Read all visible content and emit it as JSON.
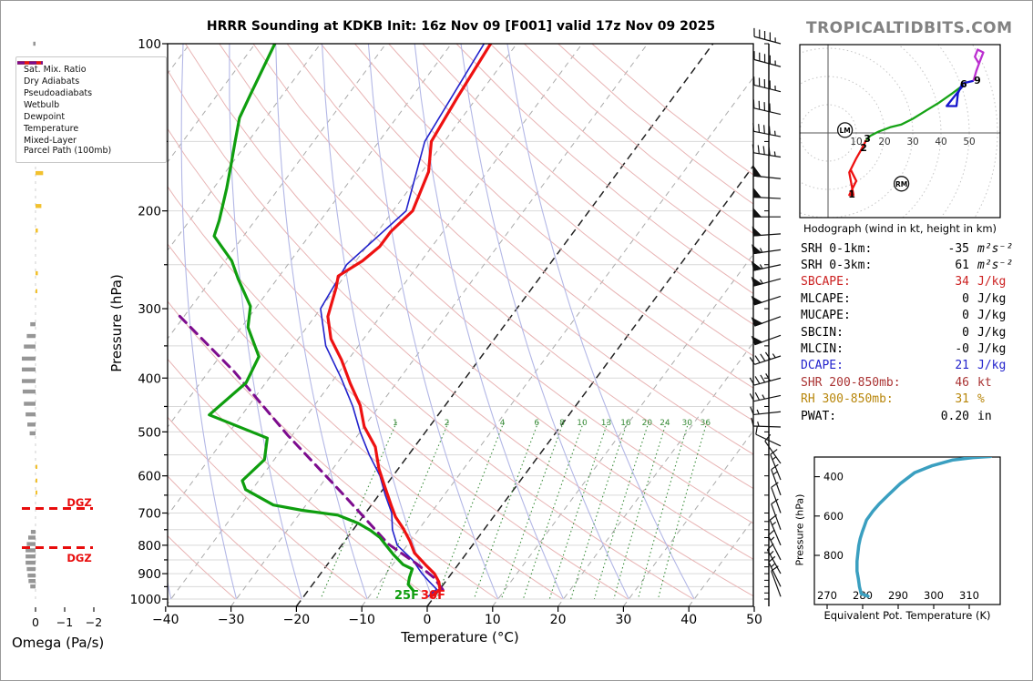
{
  "header": {
    "title": "HRRR Sounding at KDKB Init: 16z Nov 09 [F001] valid 17z Nov 09 2025",
    "brand": "TROPICALTIDBITS.COM"
  },
  "legend": {
    "items": [
      {
        "label": "Sat. Mix. Ratio",
        "key": "mixratio"
      },
      {
        "label": "Dry Adiabats",
        "key": "dry"
      },
      {
        "label": "Pseudoadiabats",
        "key": "pseudo"
      },
      {
        "label": "Wetbulb",
        "key": "wetbulb"
      },
      {
        "label": "Dewpoint",
        "key": "dewpoint"
      },
      {
        "label": "Temperature",
        "key": "temperature"
      },
      {
        "label": "Mixed-Layer\nParcel Path (100mb)",
        "key": "parcel"
      }
    ]
  },
  "colors": {
    "temperature": "#ee1111",
    "dewpoint": "#0f9e0f",
    "wetbulb": "#2222cc",
    "parcel": "#7d0c8e",
    "dry": "#e8b4b4",
    "pseudo": "#b3b7e6",
    "mixratio": "#3b8d3b",
    "isotherm": "#aaaaaa",
    "isotherm_hl": "#222222",
    "grid": "#d9d9d9",
    "omega_down": "#969696",
    "omega_up": "#f2c12e",
    "dgz": "#e80c0c",
    "thetae": "#3a9fc0",
    "hodo_0_3": "#ee1111",
    "hodo_3_6": "#16a316",
    "hodo_6_9": "#1515cc",
    "hodo_9_plus": "#bb2fd0",
    "barb": "#111111"
  },
  "skewt": {
    "xlabel": "Temperature (°C)",
    "ylabel": "Pressure (hPa)",
    "p_ticks": [
      100,
      200,
      300,
      400,
      500,
      600,
      700,
      800,
      900,
      1000
    ],
    "t_ticks": [
      -40,
      -30,
      -20,
      -10,
      0,
      10,
      20,
      30,
      40,
      50
    ],
    "surface_labels": {
      "dewpoint_f": "25F",
      "temperature_f": "30F"
    },
    "dgz_label": "DGZ",
    "dgz_levels_hPa": [
      687,
      808
    ],
    "mixing_ratio_labels": [
      1,
      2,
      4,
      6,
      8,
      10,
      13,
      16,
      20,
      24,
      30,
      36
    ]
  },
  "omega_panel": {
    "label": "Omega (Pa/s)",
    "ticks": [
      0,
      -1,
      -2
    ]
  },
  "hodograph": {
    "caption": "Hodograph (wind in kt, height in km)",
    "ring_labels": [
      10,
      20,
      30,
      40,
      50
    ],
    "markers": [
      {
        "label": "LM",
        "u": 6,
        "v": 1
      },
      {
        "label": "RM",
        "u": 26,
        "v": -18
      }
    ],
    "height_labels": [
      {
        "label": "1",
        "u": 8.4,
        "v": -21.6
      },
      {
        "label": "2",
        "u": 12.6,
        "v": -5.2
      },
      {
        "label": "3",
        "u": 13.9,
        "v": -1.9
      },
      {
        "label": "6",
        "u": 48,
        "v": 17.4
      },
      {
        "label": "9",
        "u": 52.9,
        "v": 18.7
      }
    ]
  },
  "thetae_panel": {
    "xlabel": "Equivalent Pot. Temperature (K)",
    "ylabel": "Pressure (hPa)",
    "x_ticks": [
      270,
      280,
      290,
      300,
      310
    ],
    "p_ticks": [
      400,
      600,
      800
    ]
  },
  "stats": {
    "rows": [
      {
        "label": "SRH 0-1km:",
        "value": "-35",
        "unit": "m²s⁻²",
        "color": "#000000",
        "math": true
      },
      {
        "label": "SRH 0-3km:",
        "value": "61",
        "unit": "m²s⁻²",
        "color": "#000000",
        "math": true
      },
      {
        "label": "SBCAPE:",
        "value": "34",
        "unit": "J/kg",
        "color": "#cc2222",
        "math": false
      },
      {
        "label": "MLCAPE:",
        "value": "0",
        "unit": "J/kg",
        "color": "#000000",
        "math": false
      },
      {
        "label": "MUCAPE:",
        "value": "0",
        "unit": "J/kg",
        "color": "#000000",
        "math": false
      },
      {
        "label": "SBCIN:",
        "value": "0",
        "unit": "J/kg",
        "color": "#000000",
        "math": false
      },
      {
        "label": "MLCIN:",
        "value": "-0",
        "unit": "J/kg",
        "color": "#000000",
        "math": false
      },
      {
        "label": "DCAPE:",
        "value": "21",
        "unit": "J/kg",
        "color": "#2222cc",
        "math": false
      },
      {
        "label": "SHR 200-850mb:",
        "value": "46",
        "unit": "kt",
        "color": "#aa3333",
        "math": false
      },
      {
        "label": "RH 300-850mb:",
        "value": "31",
        "unit": "%",
        "color": "#b8860b",
        "math": false
      },
      {
        "label": "PWAT:",
        "value": "0.20",
        "unit": "in",
        "color": "#000000",
        "math": false
      }
    ]
  },
  "chart_data": {
    "type": "line",
    "title": "HRRR Sounding at KDKB Init: 16z Nov 09 [F001] valid 17z Nov 09 2025",
    "skewt": {
      "xlabel": "Temperature (°C)",
      "ylabel": "Pressure (hPa)",
      "xlim": [
        -40,
        50
      ],
      "plim": [
        100,
        1050
      ],
      "y_scale": "log",
      "series": {
        "temperature_pT": [
          [
            100,
            -54
          ],
          [
            125,
            -53
          ],
          [
            150,
            -52
          ],
          [
            170,
            -49
          ],
          [
            200,
            -47
          ],
          [
            218,
            -48
          ],
          [
            232,
            -48
          ],
          [
            246,
            -49
          ],
          [
            262,
            -51
          ],
          [
            275,
            -50
          ],
          [
            292,
            -49
          ],
          [
            310,
            -48
          ],
          [
            340,
            -45
          ],
          [
            371,
            -41
          ],
          [
            409,
            -37
          ],
          [
            448,
            -33
          ],
          [
            489,
            -30
          ],
          [
            532,
            -26
          ],
          [
            582,
            -23
          ],
          [
            628,
            -20
          ],
          [
            677,
            -17
          ],
          [
            711,
            -15
          ],
          [
            746,
            -12.5
          ],
          [
            787,
            -10
          ],
          [
            826,
            -8
          ],
          [
            867,
            -5
          ],
          [
            900,
            -2.6
          ],
          [
            931,
            -1
          ],
          [
            960,
            0
          ],
          [
            990,
            -0.5
          ]
        ],
        "dewpoint_pT": [
          [
            100,
            -87
          ],
          [
            123,
            -85
          ],
          [
            136,
            -84
          ],
          [
            150,
            -82
          ],
          [
            165,
            -80
          ],
          [
            182,
            -78
          ],
          [
            208,
            -75.5
          ],
          [
            222,
            -74.5
          ],
          [
            246,
            -69
          ],
          [
            265,
            -66
          ],
          [
            297,
            -61
          ],
          [
            324,
            -59
          ],
          [
            366,
            -54
          ],
          [
            408,
            -53
          ],
          [
            466,
            -55
          ],
          [
            513,
            -43.5
          ],
          [
            561,
            -41.5
          ],
          [
            612,
            -42.5
          ],
          [
            635,
            -41
          ],
          [
            677,
            -35
          ],
          [
            692,
            -30
          ],
          [
            706,
            -24
          ],
          [
            730,
            -20
          ],
          [
            752,
            -17.3
          ],
          [
            775,
            -15
          ],
          [
            796,
            -13.5
          ],
          [
            832,
            -11
          ],
          [
            867,
            -8.4
          ],
          [
            883,
            -6.5
          ],
          [
            914,
            -6
          ],
          [
            941,
            -5.4
          ],
          [
            966,
            -3.9
          ]
        ],
        "wetbulb_pT": [
          [
            100,
            -55
          ],
          [
            150,
            -53
          ],
          [
            200,
            -48
          ],
          [
            250,
            -51
          ],
          [
            300,
            -50
          ],
          [
            350,
            -45
          ],
          [
            400,
            -39
          ],
          [
            450,
            -34
          ],
          [
            500,
            -30
          ],
          [
            550,
            -26
          ],
          [
            600,
            -22
          ],
          [
            650,
            -19
          ],
          [
            700,
            -16
          ],
          [
            750,
            -14
          ],
          [
            800,
            -11.5
          ],
          [
            850,
            -7.5
          ],
          [
            900,
            -4.5
          ],
          [
            930,
            -2.5
          ],
          [
            960,
            -0.5
          ],
          [
            990,
            -1
          ]
        ],
        "parcel_pT": [
          [
            962,
            0.5
          ],
          [
            914,
            -2.3
          ],
          [
            863,
            -6.5
          ],
          [
            796,
            -13
          ],
          [
            647,
            -25.6
          ],
          [
            507,
            -40.7
          ],
          [
            390,
            -56
          ],
          [
            308,
            -71
          ]
        ]
      }
    },
    "wind_barbs_p_spd_dir": [
      [
        100,
        45,
        285
      ],
      [
        110,
        45,
        285
      ],
      [
        122,
        45,
        284
      ],
      [
        134,
        42,
        283
      ],
      [
        147,
        45,
        281
      ],
      [
        160,
        47,
        279
      ],
      [
        175,
        48,
        276
      ],
      [
        190,
        48,
        273
      ],
      [
        205,
        50,
        270
      ],
      [
        220,
        52,
        266
      ],
      [
        235,
        55,
        262
      ],
      [
        250,
        57,
        258
      ],
      [
        265,
        55,
        255
      ],
      [
        285,
        52,
        252
      ],
      [
        310,
        50,
        250
      ],
      [
        335,
        50,
        250
      ],
      [
        365,
        45,
        252
      ],
      [
        400,
        40,
        255
      ],
      [
        430,
        25,
        258
      ],
      [
        460,
        15,
        264
      ],
      [
        490,
        15,
        272
      ],
      [
        530,
        10,
        295
      ],
      [
        570,
        10,
        325
      ],
      [
        610,
        15,
        338
      ],
      [
        650,
        15,
        340
      ],
      [
        700,
        10,
        340
      ],
      [
        750,
        10,
        340
      ],
      [
        800,
        15,
        337
      ],
      [
        850,
        15,
        333
      ],
      [
        900,
        15,
        331
      ],
      [
        950,
        15,
        334
      ],
      [
        990,
        10,
        340
      ]
    ],
    "omega_bars_p_w": [
      [
        100,
        0.08
      ],
      [
        124,
        -0.06
      ],
      [
        171,
        -0.26
      ],
      [
        196,
        -0.2
      ],
      [
        217,
        -0.08
      ],
      [
        259,
        -0.08
      ],
      [
        279,
        -0.05
      ],
      [
        320,
        0.18
      ],
      [
        336,
        0.3
      ],
      [
        351,
        0.4
      ],
      [
        369,
        0.47
      ],
      [
        386,
        0.47
      ],
      [
        405,
        0.47
      ],
      [
        423,
        0.44
      ],
      [
        445,
        0.4
      ],
      [
        465,
        0.34
      ],
      [
        485,
        0.28
      ],
      [
        503,
        0.2
      ],
      [
        578,
        -0.04
      ],
      [
        612,
        -0.05
      ],
      [
        643,
        -0.04
      ],
      [
        757,
        0.16
      ],
      [
        775,
        0.25
      ],
      [
        796,
        0.3
      ],
      [
        817,
        0.34
      ],
      [
        838,
        0.34
      ],
      [
        860,
        0.34
      ],
      [
        883,
        0.3
      ],
      [
        907,
        0.27
      ],
      [
        928,
        0.24
      ],
      [
        949,
        0.18
      ]
    ],
    "hodograph_uv_kt": {
      "rings_kt": [
        10,
        20,
        30,
        40,
        50,
        60
      ],
      "segment_0_3km": [
        [
          8,
          -13
        ],
        [
          10,
          -17
        ],
        [
          7.5,
          -22
        ],
        [
          9,
          -22
        ],
        [
          7.5,
          -14
        ],
        [
          10,
          -9
        ],
        [
          12,
          -5.5
        ],
        [
          13.5,
          -2.5
        ]
      ],
      "segment_3_6km": [
        [
          13.5,
          -2.5
        ],
        [
          15,
          -1
        ],
        [
          18,
          0.5
        ],
        [
          22,
          2
        ],
        [
          26,
          3
        ],
        [
          30,
          5
        ],
        [
          34,
          7.5
        ],
        [
          39,
          10.5
        ],
        [
          44,
          14
        ],
        [
          48,
          17
        ]
      ],
      "segment_6_9km": [
        [
          48,
          17
        ],
        [
          42,
          9.5
        ],
        [
          45.5,
          9.5
        ],
        [
          46,
          14
        ],
        [
          47.5,
          17.5
        ],
        [
          51.5,
          18.5
        ]
      ],
      "segment_9km_plus": [
        [
          51.5,
          18.5
        ],
        [
          52.5,
          22
        ],
        [
          54,
          26
        ],
        [
          55,
          28.5
        ],
        [
          53,
          29.5
        ],
        [
          52,
          27
        ],
        [
          53.5,
          24.5
        ]
      ]
    },
    "thetae_profile_pK": [
      [
        1008,
        281.5
      ],
      [
        995,
        279.6
      ],
      [
        960,
        279.1
      ],
      [
        920,
        278.8
      ],
      [
        880,
        278.4
      ],
      [
        830,
        278.4
      ],
      [
        800,
        278.6
      ],
      [
        750,
        278.9
      ],
      [
        715,
        279.3
      ],
      [
        680,
        279.9
      ],
      [
        655,
        280.4
      ],
      [
        620,
        281.1
      ],
      [
        575,
        282.9
      ],
      [
        540,
        284.6
      ],
      [
        495,
        287.1
      ],
      [
        435,
        290.6
      ],
      [
        380,
        294.6
      ],
      [
        345,
        299.4
      ],
      [
        315,
        305.4
      ],
      [
        303,
        311
      ],
      [
        297,
        316
      ]
    ],
    "thetae_axis": {
      "xlim": [
        268,
        318
      ],
      "plim": [
        300,
        1050
      ],
      "y_scale": "linear"
    }
  }
}
